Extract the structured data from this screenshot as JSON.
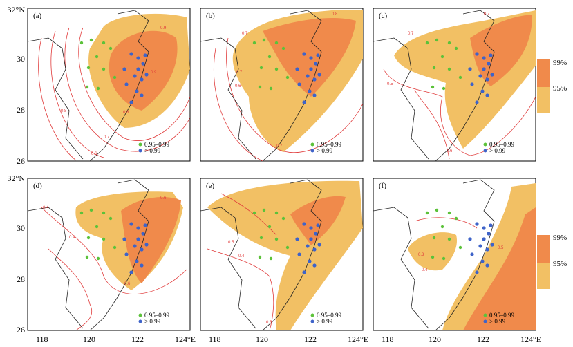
{
  "figure": {
    "panels": [
      {
        "label": "(a)"
      },
      {
        "label": "(b)"
      },
      {
        "label": "(c)"
      },
      {
        "label": "(d)"
      },
      {
        "label": "(e)"
      },
      {
        "label": "(f)"
      }
    ],
    "lat_ticks": [
      "26",
      "28",
      "30",
      "32°N"
    ],
    "lon_ticks": [
      "118",
      "120",
      "122",
      "124°E"
    ],
    "legend": {
      "green_label": "0.95–0.99",
      "blue_label": "> 0.99"
    },
    "colorbar": {
      "high_label": "99%",
      "low_label": "95%"
    },
    "contour_values": {
      "a": [
        "0.9",
        "0.8",
        "0.7",
        "0.6",
        "0.5",
        "0.4",
        "0.3"
      ],
      "b": [
        "0.8",
        "0.7",
        "0.6",
        "0.5"
      ],
      "c": [
        "0.7",
        "0.6",
        "0.5",
        "0.4"
      ],
      "d": [
        "0.6",
        "0.5",
        "0.4",
        "0.3"
      ],
      "e": [
        "0.5",
        "0.4",
        "0.3"
      ],
      "f": [
        "0.5",
        "0.4",
        "0.3"
      ]
    },
    "colors": {
      "high": "#f08a4b",
      "low": "#f2c064",
      "contour": "#e03a3a",
      "green_point": "#5cc23a",
      "blue_point": "#3e63c9"
    }
  }
}
